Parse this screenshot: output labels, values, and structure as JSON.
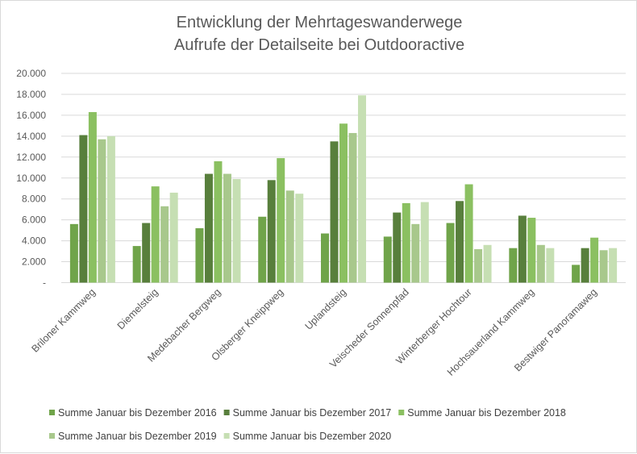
{
  "chart_data": {
    "type": "bar",
    "title": [
      "Entwicklung der Mehrtageswanderwege",
      "Aufrufe der Detailseite bei Outdooractive"
    ],
    "xlabel": "",
    "ylabel": "",
    "ylim": [
      0,
      20000
    ],
    "yticks": [
      {
        "value": 0,
        "label": "-"
      },
      {
        "value": 2000,
        "label": "2.000"
      },
      {
        "value": 4000,
        "label": "4.000"
      },
      {
        "value": 6000,
        "label": "6.000"
      },
      {
        "value": 8000,
        "label": "8.000"
      },
      {
        "value": 10000,
        "label": "10.000"
      },
      {
        "value": 12000,
        "label": "12.000"
      },
      {
        "value": 14000,
        "label": "14.000"
      },
      {
        "value": 16000,
        "label": "16.000"
      },
      {
        "value": 18000,
        "label": "18.000"
      },
      {
        "value": 20000,
        "label": "20.000"
      }
    ],
    "grid": true,
    "legend_position": "bottom",
    "categories": [
      "Briloner Kammweg",
      "Diemelsteig",
      "Medebacher Bergweg",
      "Olsberger Kneippweg",
      "Uplandsteig",
      "Veischeder Sonnenpfad",
      "Winterberger Hochtour",
      "Hochsauerland Kammweg",
      "Bestwiger Panoramaweg"
    ],
    "series": [
      {
        "name": "Summe Januar bis Dezember 2016",
        "color": "#70a44a",
        "values": [
          5600,
          3500,
          5200,
          6300,
          4700,
          4400,
          5700,
          3300,
          1700
        ]
      },
      {
        "name": "Summe Januar bis Dezember 2017",
        "color": "#587f3c",
        "values": [
          14100,
          5700,
          10400,
          9800,
          13500,
          6700,
          7800,
          6400,
          3300
        ]
      },
      {
        "name": "Summe Januar bis Dezember 2018",
        "color": "#8bc061",
        "values": [
          16300,
          9200,
          11600,
          11900,
          15200,
          7600,
          9400,
          6200,
          4300
        ]
      },
      {
        "name": "Summe Januar bis Dezember 2019",
        "color": "#a8c88c",
        "values": [
          13700,
          7300,
          10400,
          8800,
          14300,
          5600,
          3200,
          3600,
          3100
        ]
      },
      {
        "name": "Summe Januar bis Dezember 2020",
        "color": "#c6dfb3",
        "values": [
          14000,
          8600,
          9900,
          8500,
          17900,
          7700,
          3600,
          3300,
          3300
        ]
      }
    ]
  }
}
